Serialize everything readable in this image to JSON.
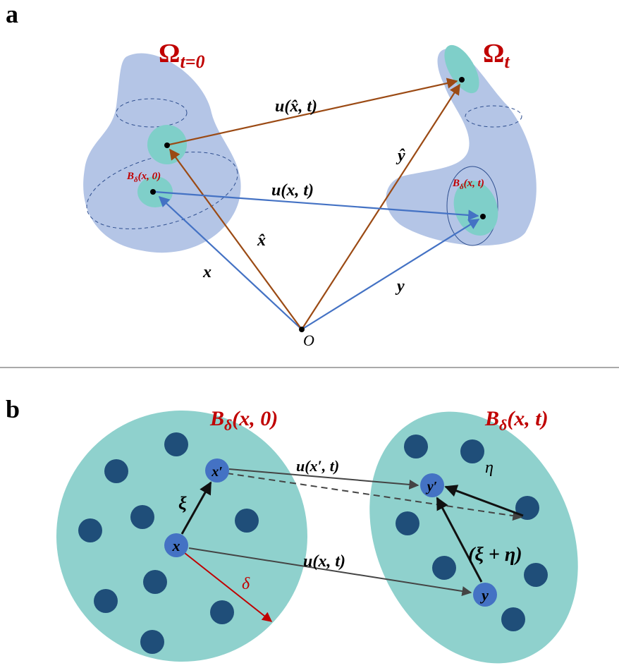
{
  "panel_a": {
    "label": "a",
    "omega_initial": {
      "base": "Ω",
      "sub": "t=0"
    },
    "omega_current": {
      "base": "Ω",
      "sub": "t"
    },
    "u_hat_label": "u(x̂, t)",
    "y_hat_label": "ŷ",
    "ball_initial": {
      "base": "B",
      "sub": "δ",
      "rest": "(x, 0)"
    },
    "u_label": "u(x, t)",
    "ball_current": {
      "base": "B",
      "sub": "δ",
      "rest": "(x, t)"
    },
    "x_hat_label": "x̂",
    "x_label": "x",
    "y_label": "y",
    "origin": "O"
  },
  "panel_b": {
    "label": "b",
    "ball_initial": {
      "base": "B",
      "sub": "δ",
      "rest": "(x, 0)"
    },
    "ball_current": {
      "base": "B",
      "sub": "δ",
      "rest": "(x, t)"
    },
    "x_prime": "x′",
    "u_prime_label": "u(x′, t)",
    "y_prime": "y′",
    "eta": "η",
    "xi": "ξ",
    "x": "x",
    "xi_eta": "(ξ + η)",
    "u_label": "u(x, t)",
    "delta": "δ",
    "y": "y"
  }
}
